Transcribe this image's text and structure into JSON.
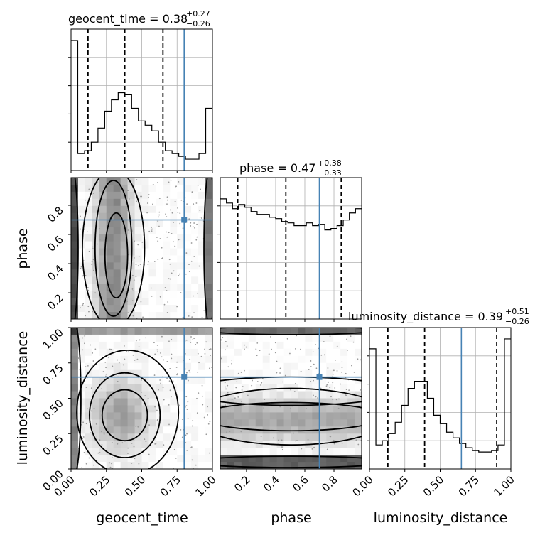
{
  "chart_data": {
    "type": "corner",
    "parameters": [
      "geocent_time",
      "phase",
      "luminosity_distance"
    ],
    "axis_labels": {
      "x": [
        "geocent_time",
        "phase",
        "luminosity_distance"
      ],
      "y": [
        "phase",
        "luminosity_distance"
      ]
    },
    "titles": [
      {
        "param": "geocent_time",
        "text": "geocent_time = 0.38",
        "plus": "+0.27",
        "minus": "−0.26"
      },
      {
        "param": "phase",
        "text": "phase = 0.47",
        "plus": "+0.38",
        "minus": "−0.33"
      },
      {
        "param": "luminosity_distance",
        "text": "luminosity_distance = 0.39",
        "plus": "+0.51",
        "minus": "−0.26"
      }
    ],
    "ranges": {
      "geocent_time": [
        0,
        1
      ],
      "phase": [
        0.02,
        0.99
      ],
      "luminosity_distance": [
        0,
        1
      ]
    },
    "ticks": {
      "geocent_time": [
        "0.00",
        "0.25",
        "0.50",
        "0.75",
        "1.00"
      ],
      "phase": [
        "0.2",
        "0.4",
        "0.6",
        "0.8"
      ],
      "luminosity_distance": [
        "0.00",
        "0.25",
        "0.50",
        "0.75",
        "1.00"
      ]
    },
    "truths": {
      "geocent_time": 0.8,
      "phase": 0.7,
      "luminosity_distance": 0.65
    },
    "quantiles": {
      "geocent_time": [
        0.12,
        0.38,
        0.65
      ],
      "phase": [
        0.14,
        0.47,
        0.85
      ],
      "luminosity_distance": [
        0.13,
        0.39,
        0.9
      ]
    },
    "histograms": {
      "geocent_time": [
        0.92,
        0.12,
        0.14,
        0.2,
        0.3,
        0.42,
        0.5,
        0.55,
        0.54,
        0.44,
        0.35,
        0.32,
        0.28,
        0.2,
        0.14,
        0.12,
        0.1,
        0.08,
        0.08,
        0.12,
        0.44
      ],
      "phase": [
        0.85,
        0.82,
        0.78,
        0.81,
        0.79,
        0.76,
        0.74,
        0.74,
        0.72,
        0.71,
        0.69,
        0.68,
        0.66,
        0.66,
        0.68,
        0.66,
        0.67,
        0.63,
        0.64,
        0.66,
        0.7,
        0.75,
        0.78
      ],
      "luminosity_distance": [
        0.85,
        0.17,
        0.2,
        0.25,
        0.33,
        0.45,
        0.57,
        0.62,
        0.62,
        0.5,
        0.38,
        0.32,
        0.26,
        0.22,
        0.18,
        0.15,
        0.13,
        0.12,
        0.12,
        0.13,
        0.17,
        0.92
      ]
    },
    "grid": true
  }
}
